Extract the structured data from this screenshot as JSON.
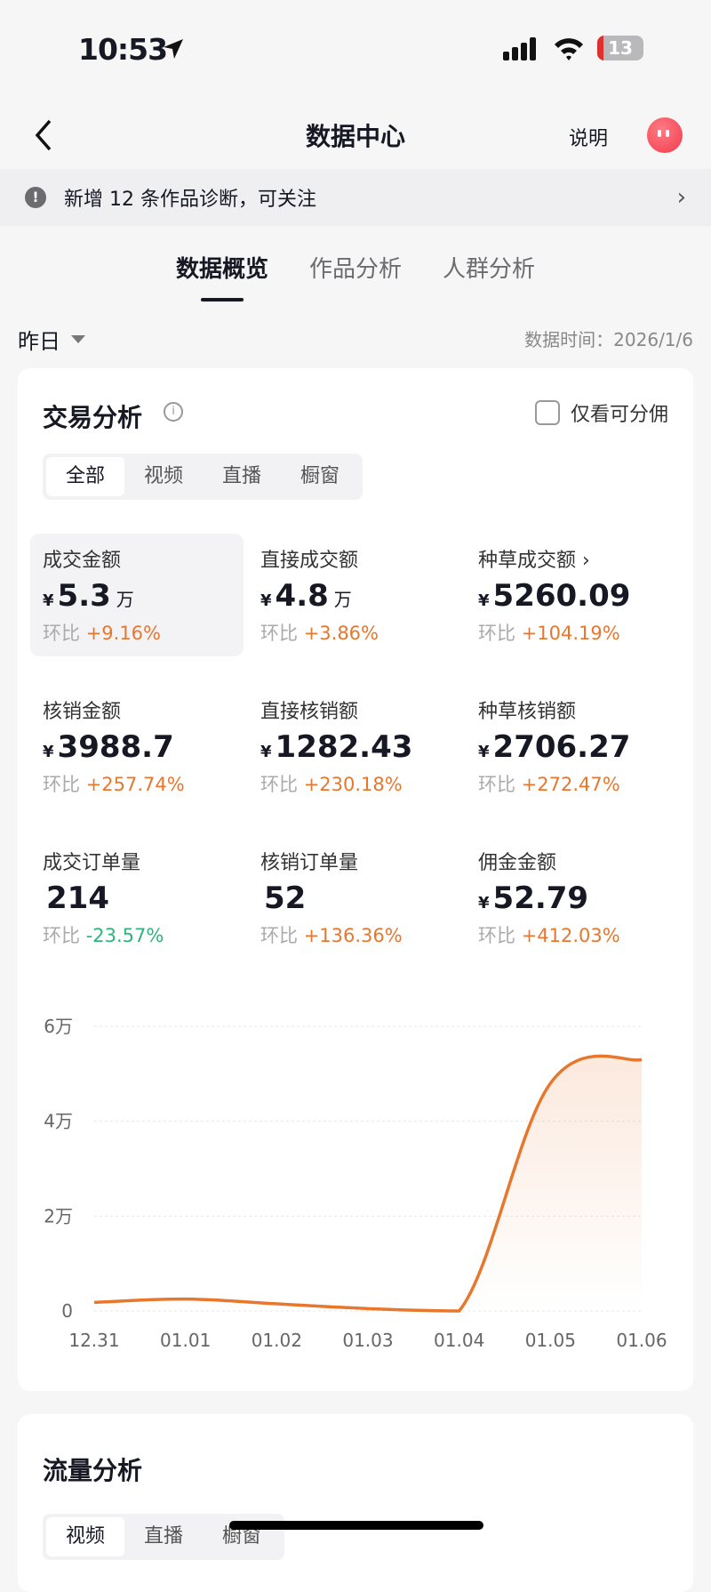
{
  "status_bar": {
    "time": "10:53",
    "battery": "13"
  },
  "nav": {
    "title": "数据中心",
    "help": "说明"
  },
  "banner": {
    "text": "新增 12 条作品诊断，可关注"
  },
  "tabs": [
    {
      "label": "数据概览",
      "active": true
    },
    {
      "label": "作品分析"
    },
    {
      "label": "人群分析"
    }
  ],
  "filter": {
    "period": "昨日",
    "data_time": "数据时间：2026/1/6"
  },
  "trade": {
    "title": "交易分析",
    "checkbox_label": "仅看可分佣",
    "checked": false,
    "segments": [
      "全部",
      "视频",
      "直播",
      "橱窗"
    ],
    "metrics": [
      {
        "label": "成交金额",
        "currency": "¥",
        "value": "5.3",
        "unit": "万",
        "cmp_label": "环比",
        "cmp": "+9.16%",
        "dir": "up"
      },
      {
        "label": "直接成交额",
        "currency": "¥",
        "value": "4.8",
        "unit": "万",
        "cmp_label": "环比",
        "cmp": "+3.86%",
        "dir": "up"
      },
      {
        "label": "种草成交额 ›",
        "currency": "¥",
        "value": "5260.09",
        "unit": "",
        "cmp_label": "环比",
        "cmp": "+104.19%",
        "dir": "up"
      },
      {
        "label": "核销金额",
        "currency": "¥",
        "value": "3988.7",
        "unit": "",
        "cmp_label": "环比",
        "cmp": "+257.74%",
        "dir": "up"
      },
      {
        "label": "直接核销额",
        "currency": "¥",
        "value": "1282.43",
        "unit": "",
        "cmp_label": "环比",
        "cmp": "+230.18%",
        "dir": "up"
      },
      {
        "label": "种草核销额",
        "currency": "¥",
        "value": "2706.27",
        "unit": "",
        "cmp_label": "环比",
        "cmp": "+272.47%",
        "dir": "up"
      },
      {
        "label": "成交订单量",
        "currency": "",
        "value": "214",
        "unit": "",
        "cmp_label": "环比",
        "cmp": "-23.57%",
        "dir": "down"
      },
      {
        "label": "核销订单量",
        "currency": "",
        "value": "52",
        "unit": "",
        "cmp_label": "环比",
        "cmp": "+136.36%",
        "dir": "up"
      },
      {
        "label": "佣金金额",
        "currency": "¥",
        "value": "52.79",
        "unit": "",
        "cmp_label": "环比",
        "cmp": "+412.03%",
        "dir": "up"
      }
    ]
  },
  "chart_data": {
    "type": "area",
    "categories": [
      "12.31",
      "01.01",
      "01.02",
      "01.03",
      "01.04",
      "01.05",
      "01.06"
    ],
    "values": [
      1800,
      2500,
      1500,
      500,
      0,
      48000,
      53000
    ],
    "yticks": [
      "0",
      "2万",
      "4万",
      "6万"
    ],
    "ylim": [
      0,
      60000
    ],
    "grid": true,
    "color": "#e8772e"
  },
  "traffic": {
    "title": "流量分析",
    "segments": [
      "视频",
      "直播",
      "橱窗"
    ]
  }
}
